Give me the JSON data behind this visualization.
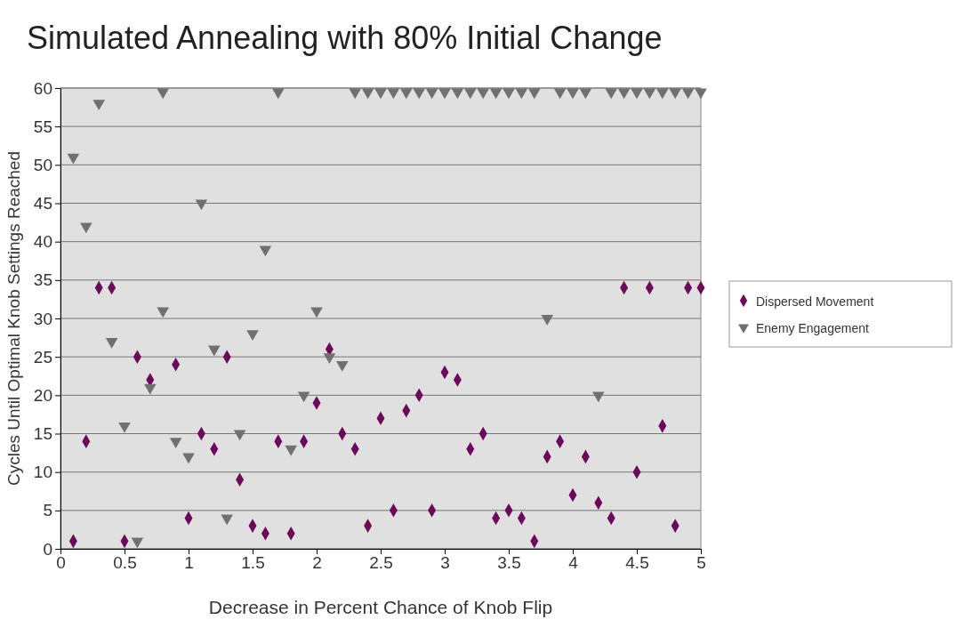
{
  "chart_data": {
    "type": "scatter",
    "title": "Simulated Annealing with 80% Initial Change",
    "xlabel": "Decrease in Percent Chance of Knob Flip",
    "ylabel": "Cycles Until Optimal Knob Settings Reached",
    "xlim": [
      0,
      5
    ],
    "xticks": [
      0,
      0.5,
      1,
      1.5,
      2,
      2.5,
      3,
      3.5,
      4,
      4.5,
      5
    ],
    "ylim": [
      0,
      60
    ],
    "yticks": [
      0,
      5,
      10,
      15,
      20,
      25,
      30,
      35,
      40,
      45,
      50,
      55,
      60
    ],
    "grid": "y",
    "legend": "right",
    "series": [
      {
        "name": "Dispersed Movement",
        "color": "#6b0a5a",
        "marker": "diamond",
        "x": [
          0.1,
          0.2,
          0.3,
          0.4,
          0.5,
          0.6,
          0.7,
          0.9,
          1.0,
          1.1,
          1.2,
          1.3,
          1.4,
          1.5,
          1.6,
          1.7,
          1.8,
          1.9,
          2.0,
          2.1,
          2.2,
          2.3,
          2.4,
          2.5,
          2.6,
          2.7,
          2.8,
          2.9,
          3.0,
          3.1,
          3.2,
          3.3,
          3.4,
          3.5,
          3.6,
          3.7,
          3.8,
          3.9,
          4.0,
          4.1,
          4.2,
          4.3,
          4.4,
          4.5,
          4.6,
          4.7,
          4.8,
          4.9,
          5.0
        ],
        "values": [
          1,
          14,
          34,
          34,
          1,
          25,
          22,
          24,
          4,
          15,
          13,
          25,
          9,
          3,
          2,
          14,
          2,
          14,
          19,
          26,
          15,
          13,
          3,
          17,
          5,
          18,
          20,
          5,
          23,
          22,
          13,
          15,
          4,
          5,
          4,
          1,
          12,
          14,
          7,
          12,
          6,
          4,
          34,
          10,
          34,
          16,
          3,
          34,
          34
        ]
      },
      {
        "name": "Enemy Engagement",
        "color": "#707070",
        "marker": "triangle-down",
        "x": [
          0.1,
          0.2,
          0.3,
          0.4,
          0.5,
          0.6,
          0.7,
          0.8,
          0.8,
          0.9,
          1.0,
          1.1,
          1.2,
          1.3,
          1.4,
          1.5,
          1.6,
          1.7,
          1.8,
          1.9,
          2.0,
          2.1,
          2.2,
          2.3,
          2.4,
          2.5,
          2.6,
          2.7,
          2.8,
          2.9,
          3.0,
          3.1,
          3.2,
          3.3,
          3.4,
          3.5,
          3.6,
          3.7,
          3.8,
          3.9,
          4.0,
          4.1,
          4.2,
          4.3,
          4.4,
          4.5,
          4.6,
          4.7,
          4.8,
          4.9,
          5.0
        ],
        "values": [
          51,
          42,
          58,
          27,
          16,
          1,
          21,
          59.5,
          31,
          14,
          12,
          45,
          26,
          4,
          15,
          28,
          39,
          59.5,
          13,
          20,
          31,
          25,
          24,
          59.5,
          59.5,
          59.5,
          59.5,
          59.5,
          59.5,
          59.5,
          59.5,
          59.5,
          59.5,
          59.5,
          59.5,
          59.5,
          59.5,
          59.5,
          30,
          59.5,
          59.5,
          59.5,
          20,
          59.5,
          59.5,
          59.5,
          59.5,
          59.5,
          59.5,
          59.5,
          59.5
        ]
      }
    ]
  }
}
